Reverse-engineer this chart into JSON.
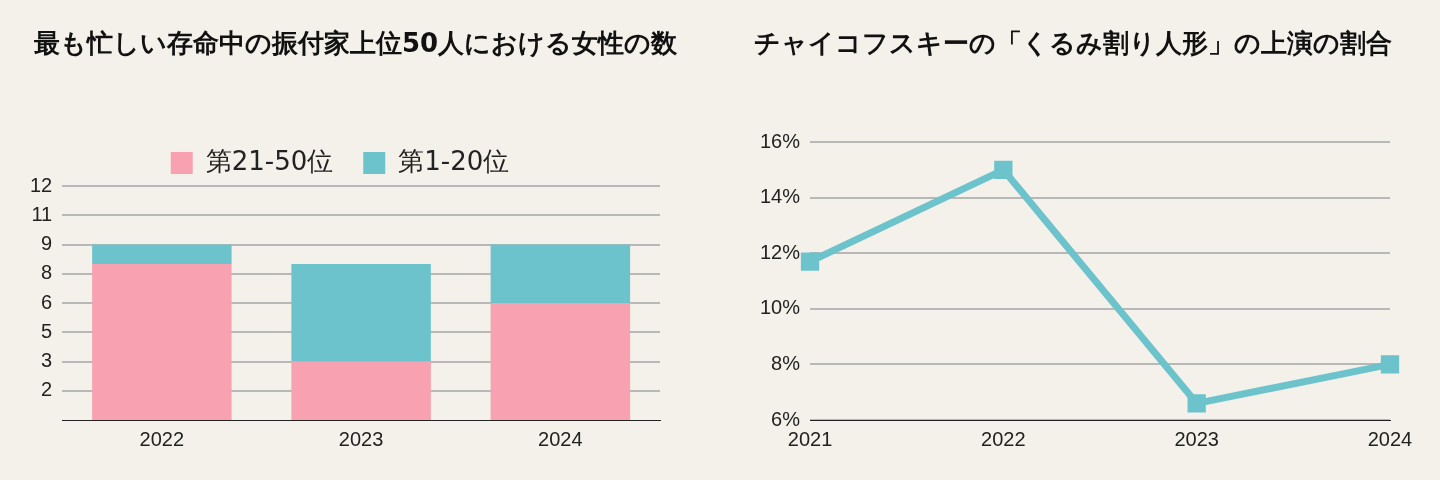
{
  "chart_data": [
    {
      "type": "bar",
      "title": "最も忙しい存命中の振付家上位50人における女性の数",
      "categories": [
        "2022",
        "2023",
        "2024"
      ],
      "stacked": true,
      "series": [
        {
          "name": "第21-50位",
          "color": "#f7a1b1",
          "values": [
            8,
            3,
            6
          ]
        },
        {
          "name": "第1-20位",
          "color": "#6cc3cc",
          "values": [
            1,
            5,
            3
          ]
        }
      ],
      "ylim": [
        0,
        12
      ],
      "yticks": [
        {
          "value": 1.5,
          "label": "2"
        },
        3,
        {
          "value": 4.5,
          "label": "5"
        },
        6,
        {
          "value": 7.5,
          "label": "8"
        },
        9,
        {
          "value": 10.5,
          "label": "11"
        },
        12
      ],
      "grid": "y",
      "legend": "top"
    },
    {
      "type": "line",
      "title": "チャイコフスキーの「くるみ割り人形」の上演の割合",
      "categories": [
        "2021",
        "2022",
        "2023",
        "2024"
      ],
      "series": [
        {
          "color": "#6cc3cc",
          "values": [
            11.7,
            15,
            6.6,
            8
          ]
        }
      ],
      "ylim": [
        6,
        16
      ],
      "yticks": [
        {
          "value": 6,
          "label": "6%"
        },
        {
          "value": 8,
          "label": "8%"
        },
        {
          "value": 10,
          "label": "10%"
        },
        {
          "value": 12,
          "label": "12%"
        },
        {
          "value": 14,
          "label": "14%"
        },
        {
          "value": 16,
          "label": "16%"
        }
      ],
      "grid": "y",
      "legend": false,
      "marker": "square",
      "line_style": "solid"
    }
  ]
}
